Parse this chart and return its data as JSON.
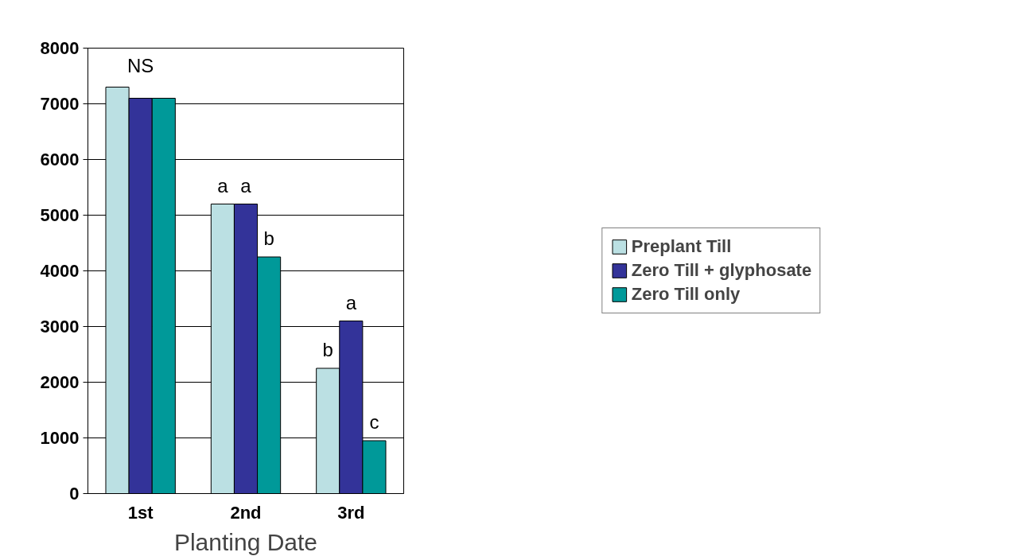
{
  "chart_data": {
    "type": "bar",
    "xlabel": "Planting Date",
    "categories": [
      "1st",
      "2nd",
      "3rd"
    ],
    "series": [
      {
        "name": "Preplant Till",
        "color": "#bbe0e3",
        "values": [
          7300,
          5200,
          2250
        ],
        "value_labels": [
          null,
          "a",
          "b"
        ]
      },
      {
        "name": "Zero Till + glyphosate",
        "color": "#333399",
        "values": [
          7100,
          5200,
          3100
        ],
        "value_labels": [
          null,
          "a",
          "a"
        ]
      },
      {
        "name": "Zero Till only",
        "color": "#009999",
        "values": [
          7100,
          4250,
          950
        ],
        "value_labels": [
          null,
          "b",
          "c"
        ]
      }
    ],
    "ylim": [
      0,
      8000
    ],
    "yticks": [
      0,
      1000,
      2000,
      3000,
      4000,
      5000,
      6000,
      7000,
      8000
    ],
    "grid": "y",
    "legend": "right",
    "annotations": [
      "NS"
    ]
  }
}
